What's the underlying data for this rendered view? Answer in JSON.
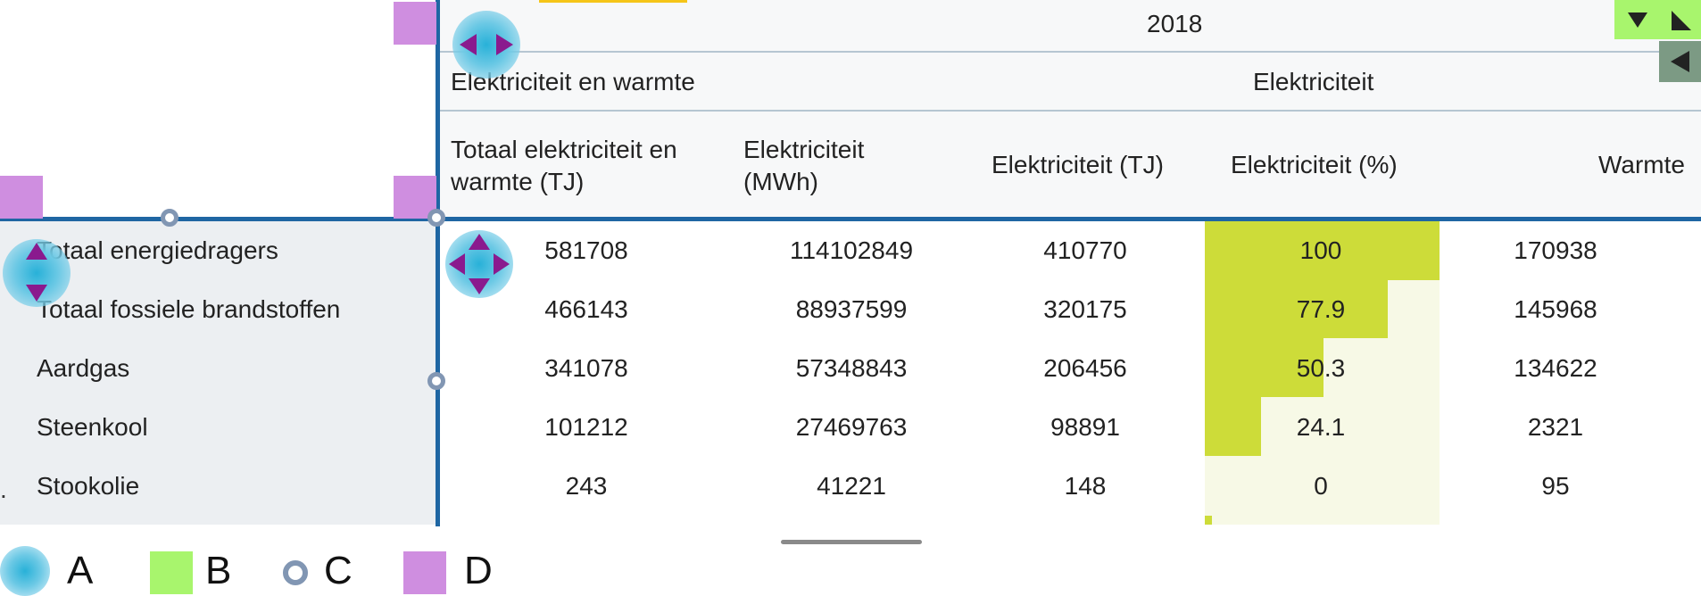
{
  "header": {
    "year": "2018",
    "group_left": "Elektriciteit en warmte",
    "group_right": "Elektriciteit",
    "columns": [
      "Totaal elektriciteit en warmte (TJ)",
      "Elektriciteit (MWh)",
      "Elektriciteit (TJ)",
      "Elektriciteit (%)",
      "Warmte"
    ]
  },
  "rows": [
    {
      "label": "Totaal energiedragers",
      "values": [
        "581708",
        "114102849",
        "410770",
        "100",
        "170938"
      ]
    },
    {
      "label": "Totaal fossiele brandstoffen",
      "values": [
        "466143",
        "88937599",
        "320175",
        "77.9",
        "145968"
      ]
    },
    {
      "label": "Aardgas",
      "values": [
        "341078",
        "57348843",
        "206456",
        "50.3",
        "134622"
      ]
    },
    {
      "label": "Steenkool",
      "values": [
        "101212",
        "27469763",
        "98891",
        "24.1",
        "2321"
      ]
    },
    {
      "label": "Stookolie",
      "values": [
        "243",
        "41221",
        "148",
        "0",
        "95"
      ]
    }
  ],
  "percent_bar_fraction": [
    1.0,
    0.779,
    0.503,
    0.241,
    0.0
  ],
  "legend": [
    {
      "key": "A",
      "label": "A"
    },
    {
      "key": "B",
      "label": "B"
    },
    {
      "key": "C",
      "label": "C"
    },
    {
      "key": "D",
      "label": "D"
    }
  ],
  "colors": {
    "accent_line": "#1f66a3",
    "heat": "#cddc39",
    "heat_pale": "#f7f9e6",
    "marker_a": "#28b1d8",
    "marker_b": "#a8f56d",
    "marker_c": "#8196b3",
    "marker_d": "#cf8ee0",
    "arrow": "#8a1a8e"
  },
  "icons": {
    "sort_down": "triangle-down-icon",
    "sort_up": "triangle-up-icon",
    "collapse": "triangle-left-icon",
    "pan_horizontal": "horizontal-arrows-icon",
    "pan_vertical": "vertical-arrows-icon",
    "pan_all": "four-way-arrows-icon"
  }
}
